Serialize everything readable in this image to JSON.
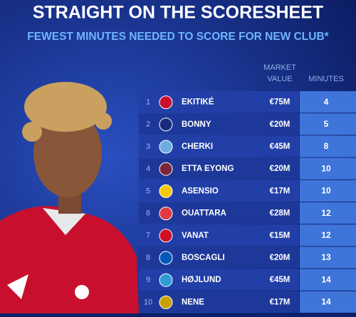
{
  "header": {
    "title": "STRAIGHT ON THE SCORESHEET",
    "subtitle": "FEWEST MINUTES NEEDED TO SCORE FOR NEW CLUB*"
  },
  "table": {
    "columns": {
      "market_value": [
        "MARKET",
        "VALUE"
      ],
      "minutes": "MINUTES"
    },
    "rows": [
      [
        1,
        "EKITIKÉ",
        "€75M",
        4
      ],
      [
        2,
        "BONNY",
        "€20M",
        5
      ],
      [
        3,
        "CHERKI",
        "€45M",
        8
      ],
      [
        4,
        "ETTA EYONG",
        "€20M",
        10
      ],
      [
        5,
        "ASENSIO",
        "€17M",
        10
      ],
      [
        6,
        "OUATTARA",
        "€28M",
        12
      ],
      [
        7,
        "VANAT",
        "€15M",
        12
      ],
      [
        8,
        "BOSCAGLI",
        "€20M",
        13
      ],
      [
        9,
        "HØJLUND",
        "€45M",
        14
      ],
      [
        10,
        "NENE",
        "€17M",
        14
      ]
    ]
  }
}
